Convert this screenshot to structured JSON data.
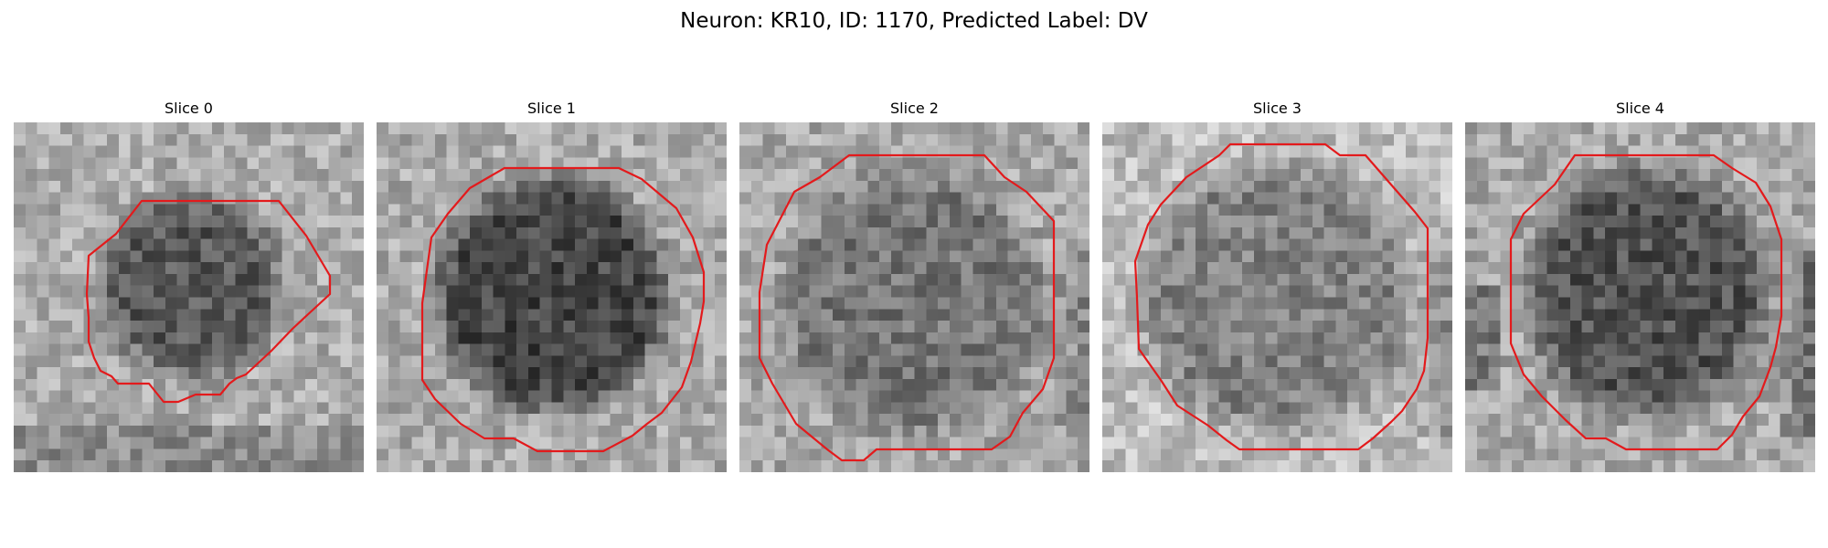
{
  "figure": {
    "title": "Neuron: KR10, ID: 1170, Predicted Label: DV",
    "contour_color": "#e31a1c",
    "colormap": "gray",
    "panels": [
      {
        "title": "Slice 0"
      },
      {
        "title": "Slice 1"
      },
      {
        "title": "Slice 2"
      },
      {
        "title": "Slice 3"
      },
      {
        "title": "Slice 4"
      }
    ]
  }
}
